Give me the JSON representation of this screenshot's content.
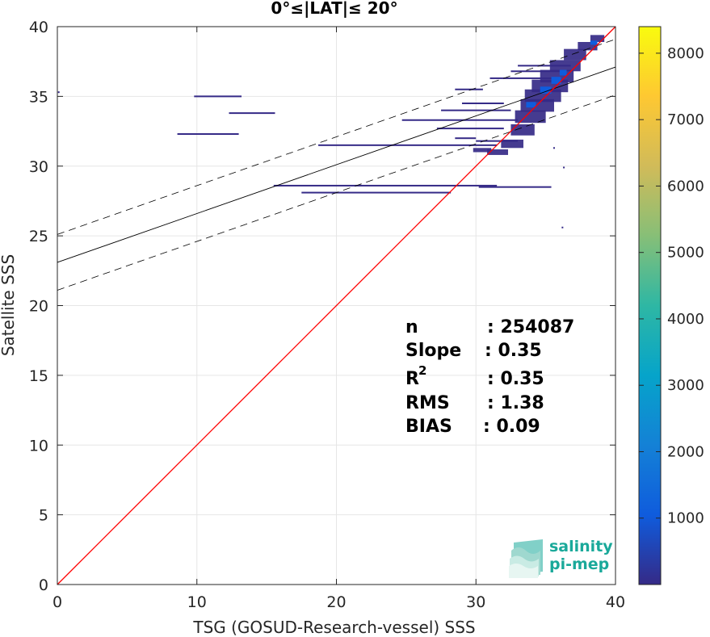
{
  "chart_data": {
    "type": "heatmap",
    "title": "0°≤|LAT|≤ 20°",
    "xlabel": "TSG (GOSUD-Research-vessel) SSS",
    "ylabel": "Satellite SSS",
    "xlim": [
      0,
      40
    ],
    "ylim": [
      0,
      40
    ],
    "x_ticks": [
      "0",
      "10",
      "20",
      "30",
      "40"
    ],
    "y_ticks": [
      "0",
      "5",
      "10",
      "15",
      "20",
      "25",
      "30",
      "35",
      "40"
    ],
    "grid": true,
    "colorbar": {
      "ticks": [
        "1000",
        "2000",
        "3000",
        "4000",
        "5000",
        "6000",
        "7000",
        "8000"
      ],
      "tick_values": [
        1000,
        2000,
        3000,
        4000,
        5000,
        6000,
        7000,
        8000
      ],
      "range": [
        0,
        8400
      ],
      "colormap": "parula",
      "colors": [
        "#352a87",
        "#0f5cdd",
        "#1481d6",
        "#06a4ca",
        "#2eb7a4",
        "#87bf77",
        "#d1bb59",
        "#fec832",
        "#f9fb0e"
      ]
    },
    "reference_line": {
      "from": [
        0,
        0
      ],
      "to": [
        40,
        40
      ],
      "color": "#ff0000"
    },
    "fit_line": {
      "intercept": 23.1,
      "slope": 0.35,
      "color": "#000000"
    },
    "confidence_lines": {
      "offset": 2.0,
      "style": "dashed",
      "color": "#000000"
    },
    "stats": [
      {
        "label": "n",
        "value": ": 254087"
      },
      {
        "label": "Slope",
        "value": ": 0.35"
      },
      {
        "label": "R",
        "sup": "2",
        "value": ": 0.35"
      },
      {
        "label": "RMS",
        "value": ": 1.38"
      },
      {
        "label": "BIAS",
        "value": ": 0.09"
      }
    ],
    "segments": [
      {
        "y": 35.0,
        "x0": 9.8,
        "x1": 13.2
      },
      {
        "y": 33.8,
        "x0": 12.3,
        "x1": 15.6
      },
      {
        "y": 32.3,
        "x0": 8.6,
        "x1": 13.0
      },
      {
        "y": 31.5,
        "x0": 18.7,
        "x1": 31.5
      },
      {
        "y": 28.6,
        "x0": 15.5,
        "x1": 31.5
      },
      {
        "y": 28.5,
        "x0": 30.2,
        "x1": 35.4
      },
      {
        "y": 28.1,
        "x0": 17.5,
        "x1": 28.2
      },
      {
        "y": 33.3,
        "x0": 24.7,
        "x1": 33.0
      },
      {
        "y": 34.0,
        "x0": 27.5,
        "x1": 32.5
      },
      {
        "y": 32.7,
        "x0": 27.2,
        "x1": 32.0
      },
      {
        "y": 35.5,
        "x0": 28.5,
        "x1": 30.5
      },
      {
        "y": 36.3,
        "x0": 31.0,
        "x1": 35.5
      },
      {
        "y": 37.2,
        "x0": 33.0,
        "x1": 36.8
      },
      {
        "y": 31.8,
        "x0": 30.0,
        "x1": 33.0
      },
      {
        "y": 32.0,
        "x0": 28.5,
        "x1": 30.0
      },
      {
        "y": 34.5,
        "x0": 29.0,
        "x1": 32.0
      },
      {
        "y": 36.8,
        "x0": 32.5,
        "x1": 36.0
      }
    ],
    "cluster": [
      {
        "x": 31.8,
        "y": 31.3,
        "w": 1.6,
        "h": 0.6
      },
      {
        "x": 32.5,
        "y": 32.2,
        "w": 1.7,
        "h": 0.8
      },
      {
        "x": 32.8,
        "y": 33.1,
        "w": 2.2,
        "h": 0.9
      },
      {
        "x": 33.2,
        "y": 33.9,
        "w": 2.4,
        "h": 0.9
      },
      {
        "x": 33.5,
        "y": 34.6,
        "w": 2.6,
        "h": 0.9
      },
      {
        "x": 34.0,
        "y": 35.3,
        "w": 2.6,
        "h": 0.9
      },
      {
        "x": 34.6,
        "y": 36.0,
        "w": 2.4,
        "h": 0.9
      },
      {
        "x": 35.3,
        "y": 36.8,
        "w": 2.2,
        "h": 0.8
      },
      {
        "x": 36.3,
        "y": 37.6,
        "w": 1.6,
        "h": 0.8
      },
      {
        "x": 37.3,
        "y": 38.3,
        "w": 1.4,
        "h": 0.6
      },
      {
        "x": 38.2,
        "y": 38.9,
        "w": 1.0,
        "h": 0.5
      },
      {
        "x": 30.8,
        "y": 30.8,
        "w": 1.5,
        "h": 0.4
      },
      {
        "x": 29.8,
        "y": 31.0,
        "w": 1.3,
        "h": 0.3
      }
    ],
    "hot": [
      {
        "x": 34.6,
        "y": 35.2,
        "w": 0.8,
        "h": 0.5
      },
      {
        "x": 35.4,
        "y": 35.9,
        "w": 0.7,
        "h": 0.5
      },
      {
        "x": 36.0,
        "y": 36.5,
        "w": 0.5,
        "h": 0.4
      },
      {
        "x": 33.6,
        "y": 34.2,
        "w": 0.7,
        "h": 0.4
      },
      {
        "x": 38.2,
        "y": 38.7,
        "w": 0.5,
        "h": 0.3
      }
    ],
    "outliers": [
      {
        "x": 36.2,
        "y": 25.6
      },
      {
        "x": 36.3,
        "y": 29.9
      },
      {
        "x": 35.6,
        "y": 31.3
      },
      {
        "x": 0.1,
        "y": 35.3
      }
    ]
  },
  "logo": {
    "line1": "salinity",
    "line2": "pi-mep"
  }
}
